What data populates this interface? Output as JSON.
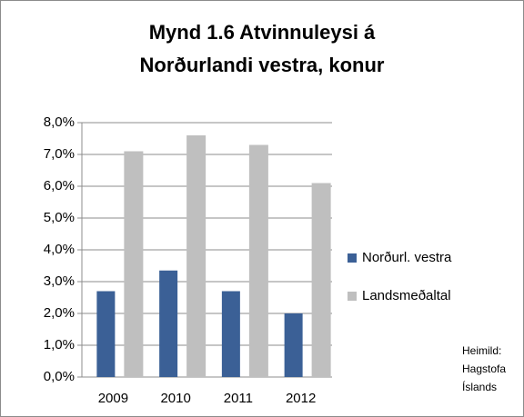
{
  "chart_data": {
    "type": "bar",
    "title": [
      "Mynd  1.6 Atvinnuleysi á",
      "Norðurlandi vestra,  konur"
    ],
    "categories": [
      "2009",
      "2010",
      "2011",
      "2012"
    ],
    "series": [
      {
        "name": "Norðurl. vestra",
        "color": "#3b6096",
        "values": [
          2.7,
          3.35,
          2.7,
          2.0
        ]
      },
      {
        "name": "Landsmeðaltal",
        "color": "#bfbfbf",
        "values": [
          7.1,
          7.6,
          7.3,
          6.1
        ]
      }
    ],
    "ylim": [
      0,
      8
    ],
    "yticks": [
      {
        "value": 0,
        "label": "0,0%"
      },
      {
        "value": 1,
        "label": "1,0%"
      },
      {
        "value": 2,
        "label": "2,0%"
      },
      {
        "value": 3,
        "label": "3,0%"
      },
      {
        "value": 4,
        "label": "4,0%"
      },
      {
        "value": 5,
        "label": "5,0%"
      },
      {
        "value": 6,
        "label": "6,0%"
      },
      {
        "value": 7,
        "label": "7,0%"
      },
      {
        "value": 8,
        "label": "8,0%"
      }
    ],
    "grid": true,
    "legend": "right",
    "annotation": [
      "Heimild:",
      "Hagstofa",
      "Íslands"
    ]
  }
}
